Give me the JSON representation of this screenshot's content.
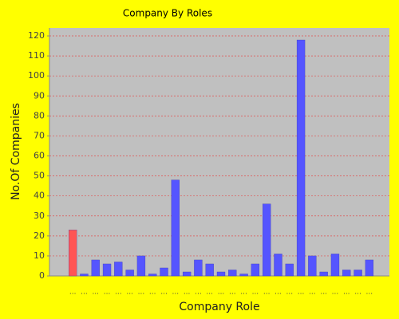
{
  "chart_data": {
    "type": "bar",
    "title": "Company By Roles",
    "x_label": "Company Role",
    "y_label": "No.Of Companies",
    "categories": [
      "...",
      "...",
      "...",
      "...",
      "...",
      "...",
      "...",
      "...",
      "...",
      "...",
      "...",
      "...",
      "...",
      "...",
      "...",
      "...",
      "...",
      "...",
      "...",
      "...",
      "...",
      "...",
      "...",
      "...",
      "...",
      "...",
      "..."
    ],
    "values": [
      23,
      1,
      8,
      6,
      7,
      3,
      10,
      1,
      4,
      48,
      2,
      8,
      6,
      2,
      3,
      1,
      6,
      36,
      11,
      6,
      118,
      10,
      2,
      11,
      3,
      3,
      8
    ],
    "colors": [
      "#ff5555",
      "#5555ff",
      "#5555ff",
      "#5555ff",
      "#5555ff",
      "#5555ff",
      "#5555ff",
      "#5555ff",
      "#5555ff",
      "#5555ff",
      "#5555ff",
      "#5555ff",
      "#5555ff",
      "#5555ff",
      "#5555ff",
      "#5555ff",
      "#5555ff",
      "#5555ff",
      "#5555ff",
      "#5555ff",
      "#5555ff",
      "#5555ff",
      "#5555ff",
      "#5555ff",
      "#5555ff",
      "#5555ff",
      "#5555ff"
    ],
    "ylim": [
      0,
      124
    ],
    "yticks": [
      0,
      10,
      20,
      30,
      40,
      50,
      60,
      70,
      80,
      90,
      100,
      110,
      120
    ],
    "grid": true
  }
}
